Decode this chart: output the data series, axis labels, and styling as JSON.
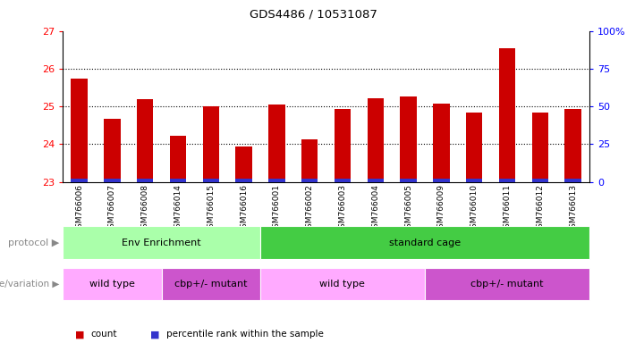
{
  "title": "GDS4486 / 10531087",
  "samples": [
    "GSM766006",
    "GSM766007",
    "GSM766008",
    "GSM766014",
    "GSM766015",
    "GSM766016",
    "GSM766001",
    "GSM766002",
    "GSM766003",
    "GSM766004",
    "GSM766005",
    "GSM766009",
    "GSM766010",
    "GSM766011",
    "GSM766012",
    "GSM766013"
  ],
  "count_values": [
    25.73,
    24.68,
    25.2,
    24.22,
    25.0,
    23.93,
    25.05,
    24.12,
    24.93,
    25.21,
    25.27,
    25.07,
    24.83,
    26.55,
    24.83,
    24.93
  ],
  "percentile_values": [
    2,
    2,
    2,
    2,
    2,
    2,
    2,
    2,
    2,
    2,
    2,
    2,
    2,
    2,
    2,
    2
  ],
  "ylim_left": [
    23,
    27
  ],
  "ylim_right": [
    0,
    100
  ],
  "yticks_left": [
    23,
    24,
    25,
    26,
    27
  ],
  "yticks_right": [
    0,
    25,
    50,
    75,
    100
  ],
  "ytick_labels_right": [
    "0",
    "25",
    "50",
    "75",
    "100%"
  ],
  "bar_color_red": "#cc0000",
  "bar_color_blue": "#3333cc",
  "protocol_groups": [
    {
      "label": "Env Enrichment",
      "start": 0,
      "end": 6,
      "color": "#aaffaa"
    },
    {
      "label": "standard cage",
      "start": 6,
      "end": 16,
      "color": "#44cc44"
    }
  ],
  "genotype_groups": [
    {
      "label": "wild type",
      "start": 0,
      "end": 3,
      "color": "#ffaaff"
    },
    {
      "label": "cbp+/- mutant",
      "start": 3,
      "end": 6,
      "color": "#cc55cc"
    },
    {
      "label": "wild type",
      "start": 6,
      "end": 11,
      "color": "#ffaaff"
    },
    {
      "label": "cbp+/- mutant",
      "start": 11,
      "end": 16,
      "color": "#cc55cc"
    }
  ],
  "protocol_label": "protocol",
  "genotype_label": "genotype/variation",
  "legend_count": "count",
  "legend_percentile": "percentile rank within the sample",
  "background_color": "#ffffff",
  "plot_bg_color": "#ffffff",
  "bar_width": 0.5,
  "base_value": 23,
  "n_samples": 16
}
